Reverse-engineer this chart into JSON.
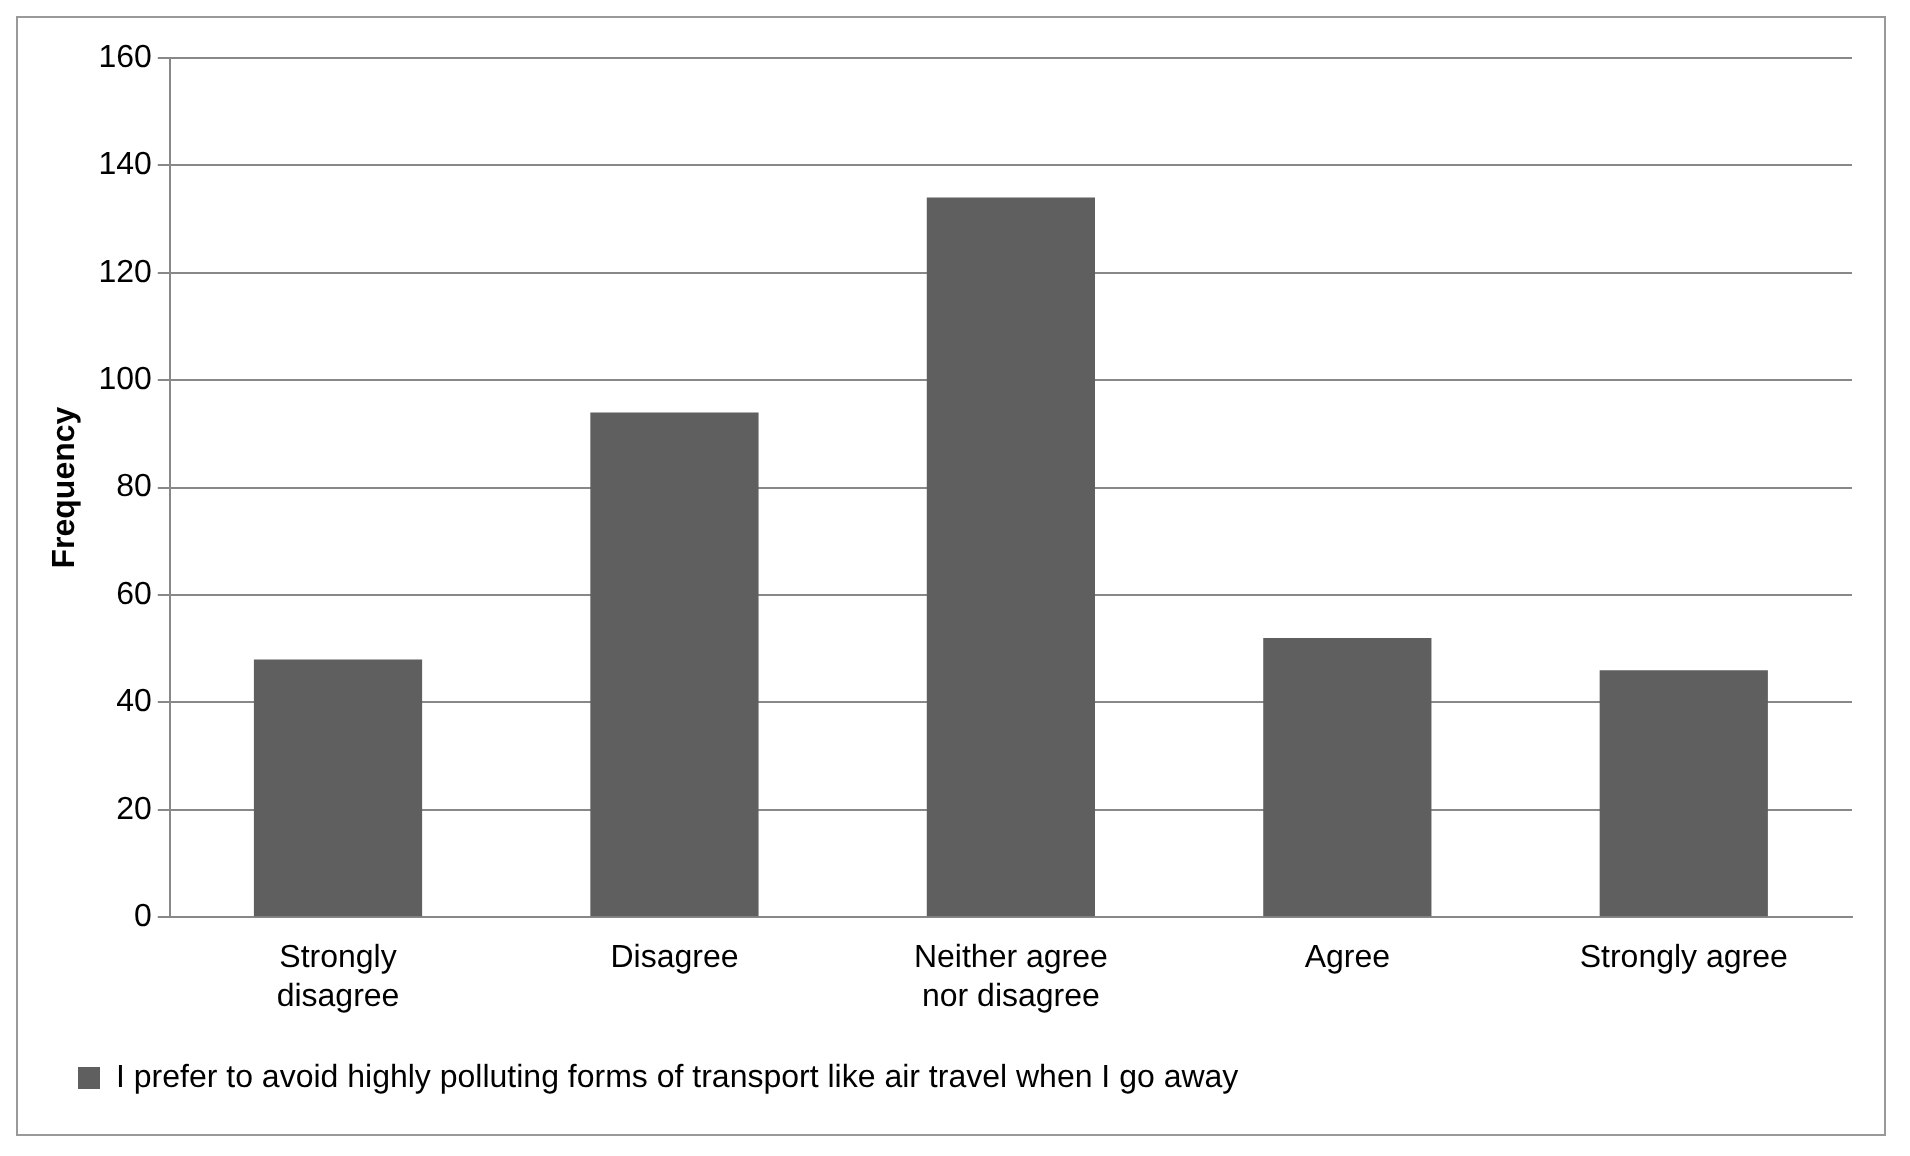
{
  "chart_data": {
    "type": "bar",
    "ylabel": "Frequency",
    "categories": [
      "Strongly disagree",
      "Disagree",
      "Neither agree nor disagree",
      "Agree",
      "Strongly agree"
    ],
    "series": [
      {
        "name": "I prefer to avoid highly polluting forms of transport like air travel when I go away",
        "color": "#5f5f5f",
        "values": [
          48,
          94,
          134,
          52,
          46
        ]
      }
    ],
    "ylim": [
      0,
      160
    ],
    "yticks": [
      0,
      20,
      40,
      60,
      80,
      100,
      120,
      140,
      160
    ],
    "grid": "y",
    "legend": "bottom"
  }
}
